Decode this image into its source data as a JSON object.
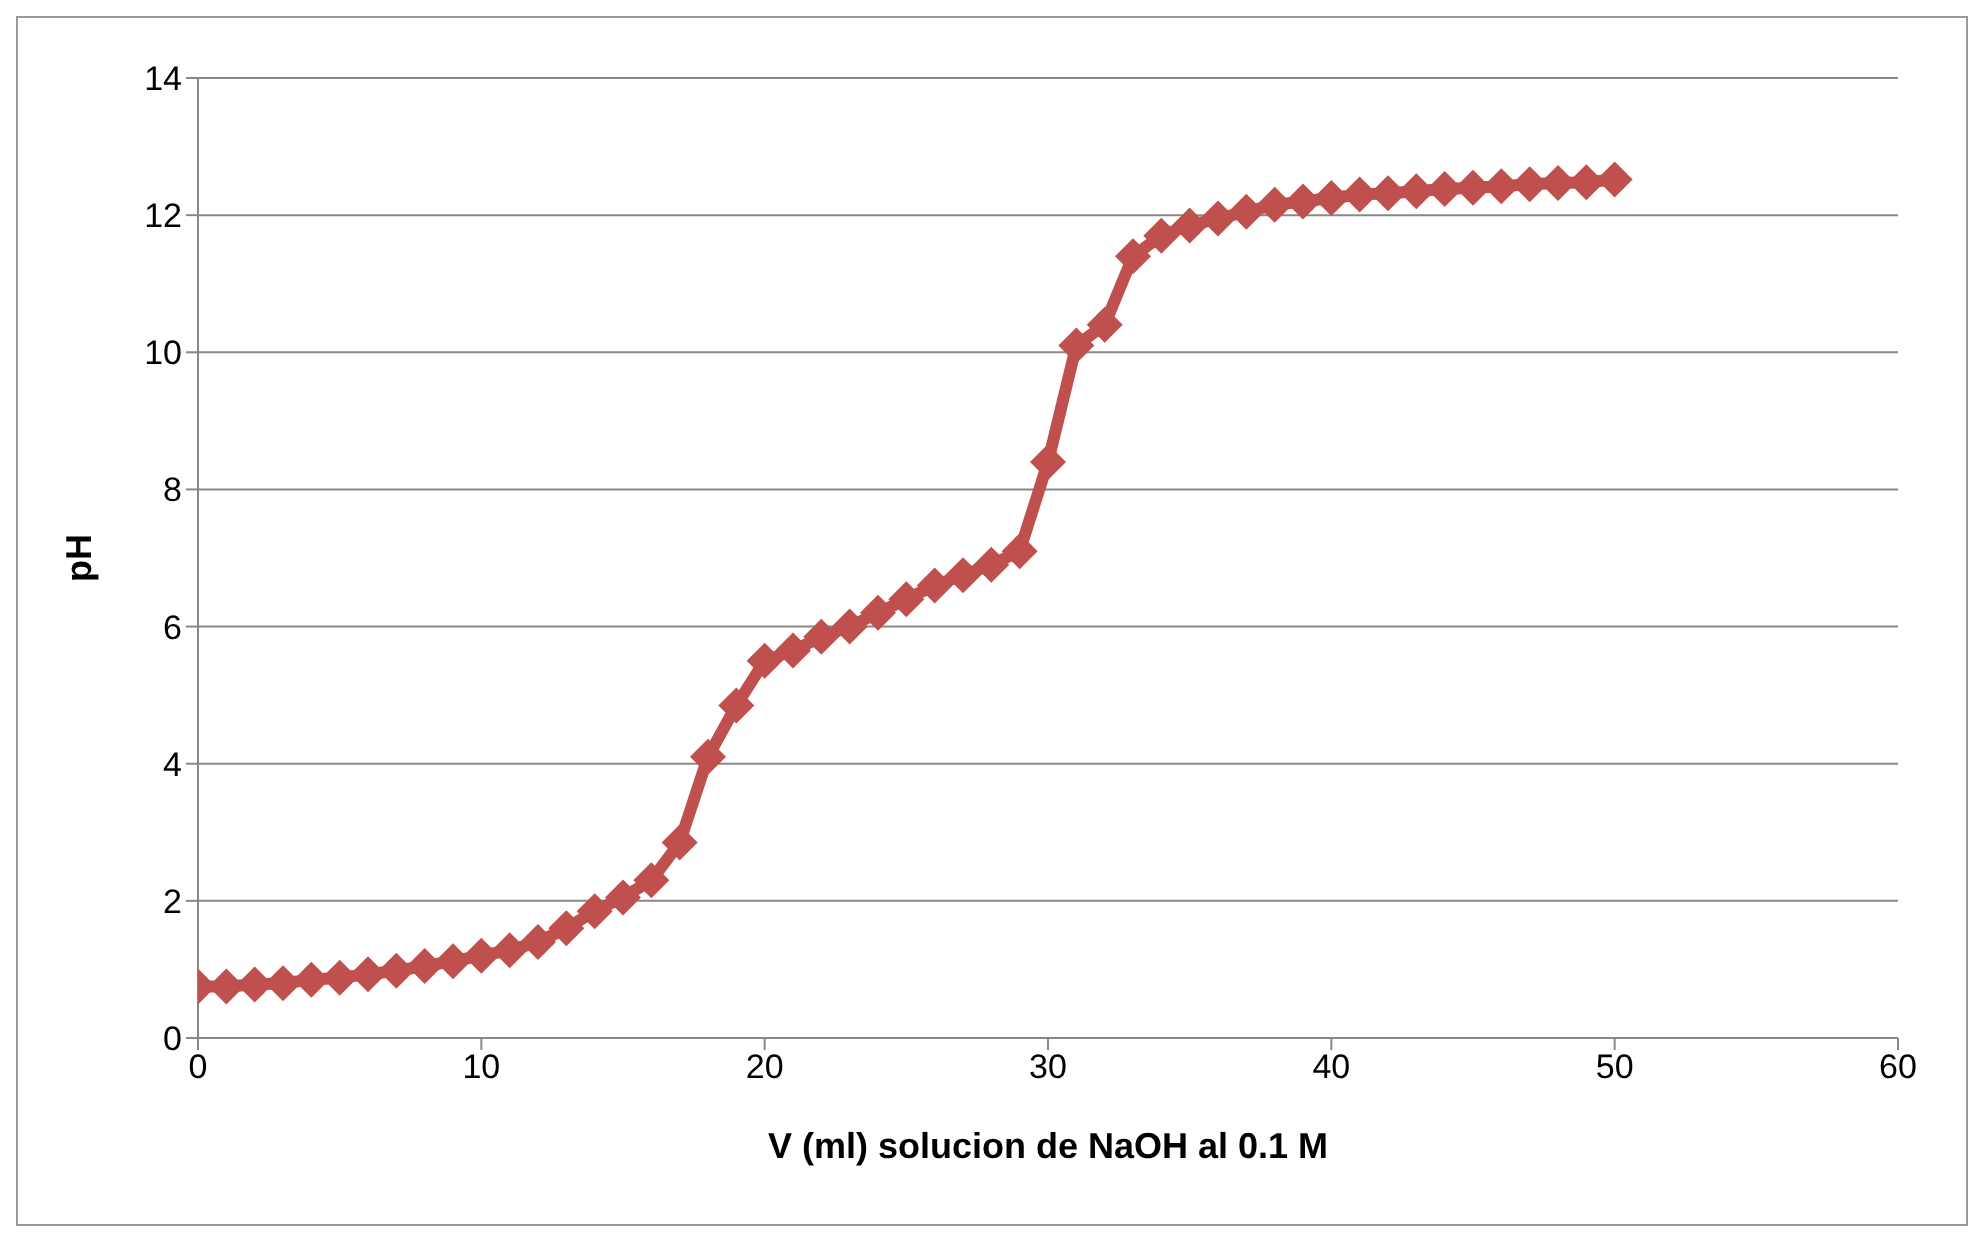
{
  "chart_data": {
    "type": "line",
    "xlabel": "V (ml) solucion de NaOH al 0.1 M",
    "ylabel": "pH",
    "x": [
      0,
      1,
      2,
      3,
      4,
      5,
      6,
      7,
      8,
      9,
      10,
      11,
      12,
      13,
      14,
      15,
      16,
      17,
      18,
      19,
      20,
      21,
      22,
      23,
      24,
      25,
      26,
      27,
      28,
      29,
      30,
      31,
      32,
      33,
      34,
      35,
      36,
      37,
      38,
      39,
      40,
      41,
      42,
      43,
      44,
      45,
      46,
      47,
      48,
      49,
      50
    ],
    "series": [
      {
        "color": "#c0504d",
        "values": [
          0.75,
          0.75,
          0.78,
          0.8,
          0.85,
          0.88,
          0.93,
          0.98,
          1.05,
          1.12,
          1.2,
          1.28,
          1.4,
          1.6,
          1.85,
          2.05,
          2.3,
          2.85,
          4.1,
          4.85,
          5.5,
          5.65,
          5.85,
          6.0,
          6.2,
          6.4,
          6.6,
          6.75,
          6.9,
          7.1,
          8.4,
          10.1,
          10.4,
          11.4,
          11.7,
          11.85,
          11.95,
          12.05,
          12.15,
          12.2,
          12.25,
          12.3,
          12.32,
          12.35,
          12.38,
          12.4,
          12.42,
          12.45,
          12.47,
          12.48,
          12.52
        ]
      }
    ],
    "xlim": [
      0,
      60
    ],
    "xticks": [
      0,
      10,
      20,
      30,
      40,
      50,
      60
    ],
    "ylim": [
      0,
      14
    ],
    "yticks": [
      0,
      2,
      4,
      6,
      8,
      10,
      12,
      14
    ],
    "grid": "y",
    "legend": false,
    "marker": "diamond",
    "line_style": "solid"
  }
}
